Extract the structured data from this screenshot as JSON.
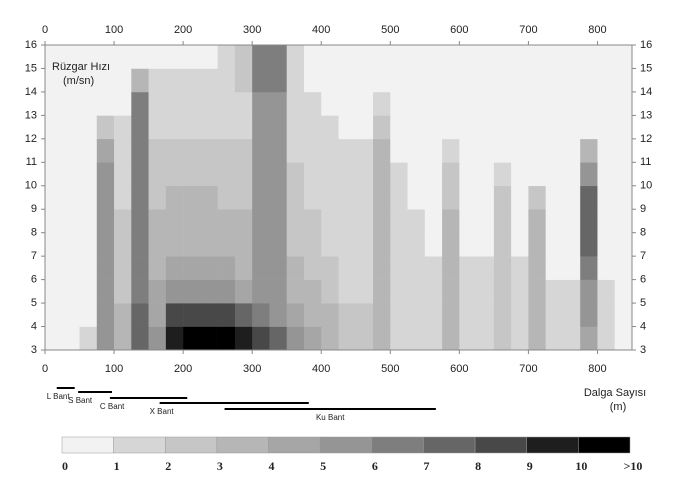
{
  "chart_data": {
    "type": "heatmap",
    "title": "Rüzgar Hızı",
    "y_unit": "(m/sn)",
    "xlabel": "Dalga Sayısı",
    "x_unit": "(m)",
    "xlim": [
      0,
      850
    ],
    "xticks": [
      0,
      100,
      200,
      300,
      400,
      500,
      600,
      700,
      800
    ],
    "ylim": [
      3,
      16
    ],
    "yticks": [
      3,
      4,
      5,
      6,
      7,
      8,
      9,
      10,
      11,
      12,
      13,
      14,
      15,
      16
    ],
    "x_bins": [
      0,
      25,
      50,
      75,
      100,
      125,
      150,
      175,
      200,
      225,
      250,
      275,
      300,
      325,
      350,
      375,
      400,
      425,
      450,
      475,
      500,
      525,
      550,
      575,
      600,
      625,
      650,
      675,
      700,
      725,
      750,
      775,
      800,
      825,
      850
    ],
    "y_bins": [
      3,
      4,
      5,
      6,
      7,
      8,
      9,
      10,
      11,
      12,
      13,
      14,
      15,
      16
    ],
    "z": [
      [
        0,
        0,
        0,
        0,
        0,
        0,
        0,
        0,
        0,
        0,
        0,
        0,
        0
      ],
      [
        0,
        0,
        0,
        0,
        0,
        0,
        0,
        0,
        0,
        0,
        0,
        0,
        0
      ],
      [
        1,
        0,
        0,
        0,
        0,
        0,
        0,
        0,
        0,
        0,
        0,
        0,
        0
      ],
      [
        5,
        5,
        5,
        5,
        5,
        5,
        5,
        5,
        4,
        2,
        0,
        0,
        0
      ],
      [
        3,
        3,
        2,
        2,
        2,
        2,
        1,
        1,
        1,
        1,
        0,
        0,
        0
      ],
      [
        7,
        7,
        6,
        6,
        6,
        6,
        6,
        6,
        6,
        6,
        6,
        3,
        0
      ],
      [
        5,
        4,
        4,
        3,
        3,
        3,
        2,
        2,
        2,
        1,
        1,
        1,
        0
      ],
      [
        9,
        8,
        5,
        4,
        3,
        3,
        3,
        2,
        2,
        1,
        1,
        1,
        0
      ],
      [
        10,
        8,
        5,
        4,
        3,
        3,
        3,
        2,
        2,
        1,
        1,
        1,
        0
      ],
      [
        10,
        8,
        5,
        4,
        3,
        3,
        3,
        2,
        2,
        1,
        1,
        1,
        0
      ],
      [
        10,
        8,
        5,
        4,
        3,
        3,
        2,
        2,
        2,
        1,
        1,
        1,
        1
      ],
      [
        9,
        7,
        4,
        3,
        3,
        3,
        2,
        2,
        2,
        1,
        1,
        2,
        2
      ],
      [
        8,
        6,
        5,
        5,
        5,
        5,
        5,
        5,
        5,
        5,
        5,
        6,
        6
      ],
      [
        7,
        5,
        5,
        5,
        5,
        5,
        5,
        5,
        5,
        5,
        5,
        6,
        6
      ],
      [
        5,
        4,
        3,
        3,
        2,
        2,
        2,
        2,
        1,
        1,
        1,
        1,
        1
      ],
      [
        4,
        3,
        3,
        2,
        2,
        2,
        1,
        1,
        1,
        1,
        1,
        0,
        0
      ],
      [
        3,
        3,
        2,
        2,
        1,
        1,
        1,
        1,
        1,
        1,
        0,
        0,
        0
      ],
      [
        2,
        2,
        1,
        1,
        1,
        1,
        1,
        1,
        1,
        0,
        0,
        0,
        0
      ],
      [
        2,
        2,
        1,
        1,
        1,
        1,
        1,
        1,
        1,
        0,
        0,
        0,
        0
      ],
      [
        3,
        3,
        3,
        3,
        3,
        3,
        3,
        3,
        3,
        2,
        1,
        0,
        0
      ],
      [
        1,
        1,
        1,
        1,
        1,
        1,
        1,
        1,
        0,
        0,
        0,
        0,
        0
      ],
      [
        1,
        1,
        1,
        1,
        1,
        1,
        0,
        0,
        0,
        0,
        0,
        0,
        0
      ],
      [
        1,
        1,
        1,
        1,
        0,
        0,
        0,
        0,
        0,
        0,
        0,
        0,
        0
      ],
      [
        3,
        3,
        3,
        3,
        3,
        3,
        2,
        2,
        1,
        0,
        0,
        0,
        0
      ],
      [
        1,
        1,
        1,
        1,
        0,
        0,
        0,
        0,
        0,
        0,
        0,
        0,
        0
      ],
      [
        1,
        1,
        1,
        1,
        0,
        0,
        0,
        0,
        0,
        0,
        0,
        0,
        0
      ],
      [
        2,
        2,
        2,
        2,
        2,
        2,
        2,
        1,
        0,
        0,
        0,
        0,
        0
      ],
      [
        1,
        1,
        1,
        1,
        0,
        0,
        0,
        0,
        0,
        0,
        0,
        0,
        0
      ],
      [
        3,
        3,
        3,
        3,
        3,
        3,
        2,
        0,
        0,
        0,
        0,
        0,
        0
      ],
      [
        1,
        1,
        1,
        0,
        0,
        0,
        0,
        0,
        0,
        0,
        0,
        0,
        0
      ],
      [
        1,
        1,
        1,
        0,
        0,
        0,
        0,
        0,
        0,
        0,
        0,
        0,
        0
      ],
      [
        4,
        5,
        5,
        6,
        7,
        7,
        7,
        5,
        3,
        0,
        0,
        0,
        0
      ],
      [
        1,
        1,
        1,
        0,
        0,
        0,
        0,
        0,
        0,
        0,
        0,
        0,
        0
      ],
      [
        0,
        0,
        0,
        0,
        0,
        0,
        0,
        0,
        0,
        0,
        0,
        0,
        0
      ]
    ],
    "bands": [
      {
        "name": "L Bant",
        "range": [
          17,
          43
        ]
      },
      {
        "name": "S Bant",
        "range": [
          48,
          97
        ]
      },
      {
        "name": "C Bant",
        "range": [
          94,
          206
        ]
      },
      {
        "name": "X Bant",
        "range": [
          166,
          382
        ]
      },
      {
        "name": "Ku Bant",
        "range": [
          260,
          566
        ]
      }
    ],
    "colorbar": {
      "range": [
        0,
        11
      ],
      "ticks": [
        0,
        1,
        2,
        3,
        4,
        5,
        6,
        7,
        8,
        9,
        10,
        {
          "value": 11,
          "label": ">10"
        }
      ],
      "colors": [
        "#f2f2f2",
        "#d6d6d6",
        "#c6c6c6",
        "#b6b6b6",
        "#a6a6a6",
        "#959595",
        "#7e7e7e",
        "#666666",
        "#484848",
        "#1e1e1e",
        "#000000"
      ]
    }
  }
}
